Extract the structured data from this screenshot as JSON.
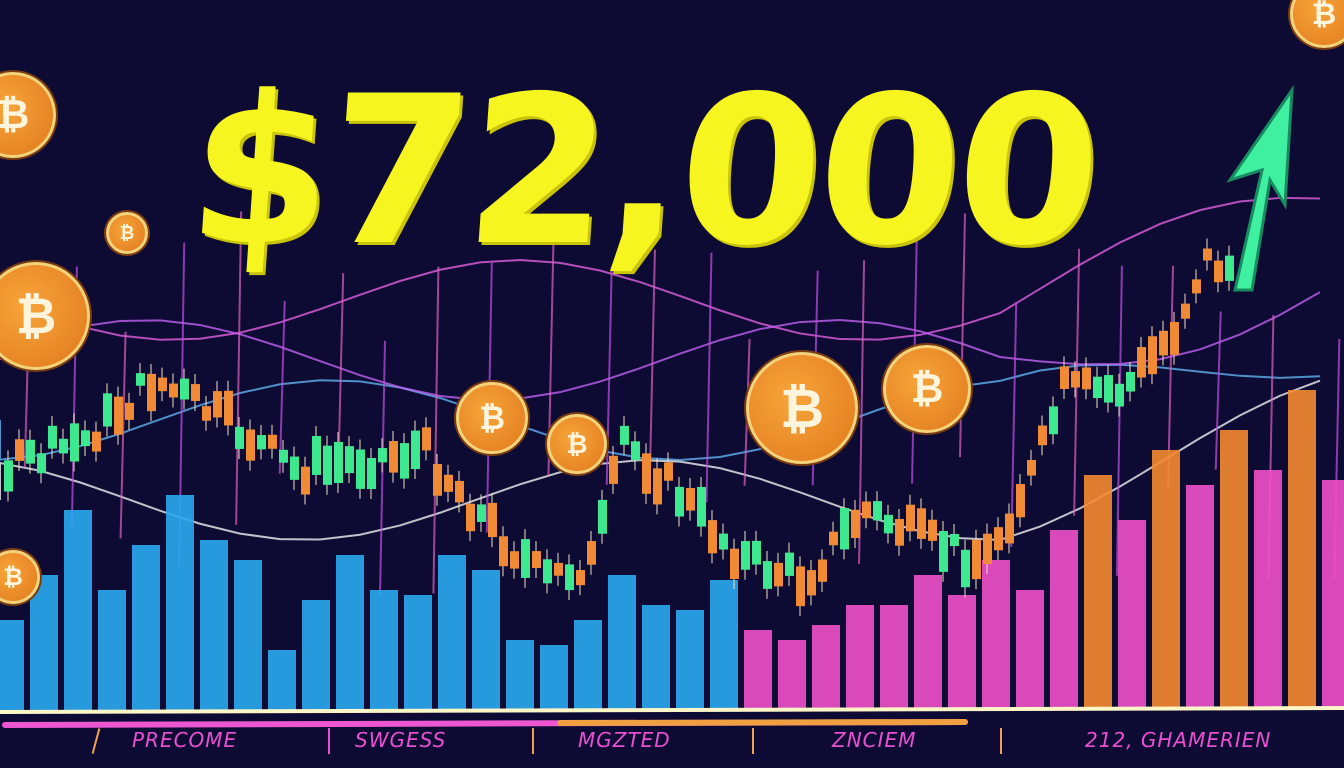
{
  "headline": "$72,000",
  "coin_symbol": "₿",
  "axis_labels": [
    "PRECOME",
    "SWGESS",
    "MGZTED",
    "ZNCIEM",
    "212, GHAMERIEN"
  ],
  "colors": {
    "background": "#0d0b33",
    "headline": "#f7f520",
    "candle_up": "#3ee88e",
    "candle_down": "#f08a35",
    "bars_left": "#2aa8f0",
    "bars_right": "#f050c8",
    "bars_far_right": "#f58a30",
    "arrow": "#3ef0a0",
    "coin": "#f0902a",
    "label": "#e850d0"
  }
}
